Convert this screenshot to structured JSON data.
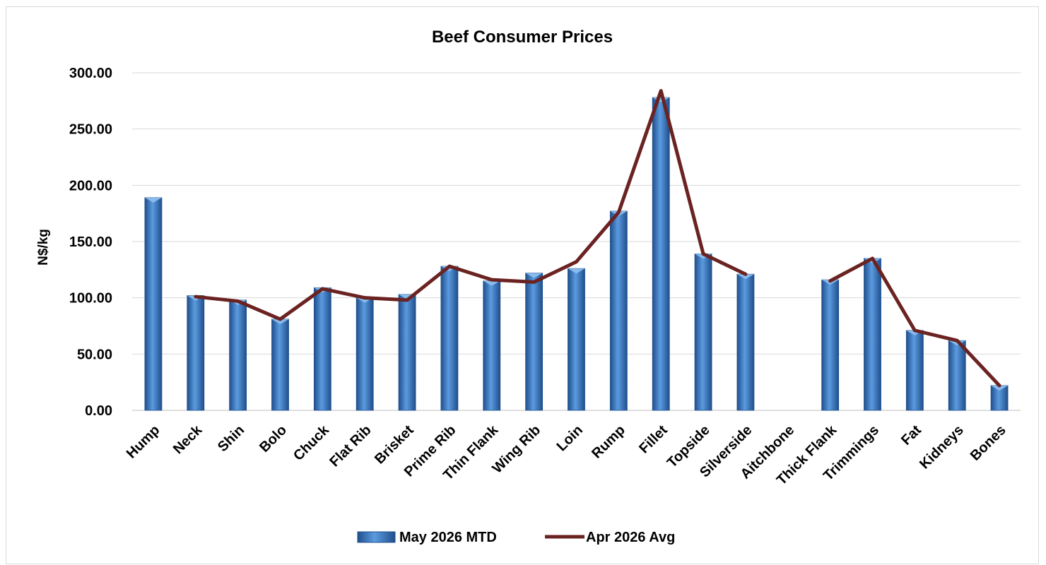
{
  "chart_data": {
    "type": "bar",
    "title": "Beef Consumer Prices",
    "ylabel": "N$/kg",
    "xlabel": "",
    "ylim": [
      0,
      300
    ],
    "yticks": [
      0,
      50,
      100,
      150,
      200,
      250,
      300
    ],
    "ytick_labels": [
      "0.00",
      "50.00",
      "100.00",
      "150.00",
      "200.00",
      "250.00",
      "300.00"
    ],
    "grid": true,
    "legend_position": "bottom",
    "categories": [
      "Hump",
      "Neck",
      "Shin",
      "Bolo",
      "Chuck",
      "Flat Rib",
      "Brisket",
      "Prime Rib",
      "Thin Flank",
      "Wing Rib",
      "Loin",
      "Rump",
      "Fillet",
      "Topside",
      "Silverside",
      "Aitchbone",
      "Thick Flank",
      "Trimmings",
      "Fat",
      "Kidneys",
      "Bones"
    ],
    "series": [
      {
        "name": "May 2026 MTD",
        "type": "bar",
        "color": "#3f7fc7",
        "values": [
          189,
          102,
          98,
          81,
          109,
          100,
          103,
          128,
          115,
          122,
          126,
          177,
          278,
          139,
          121,
          null,
          116,
          135,
          71,
          62,
          22
        ]
      },
      {
        "name": "Apr 2026 Avg",
        "type": "line",
        "color": "#6b2322",
        "values": [
          null,
          101,
          97,
          81,
          108,
          100,
          98,
          128,
          116,
          114,
          132,
          176,
          284,
          139,
          121,
          null,
          115,
          135,
          71,
          62,
          22
        ]
      }
    ]
  }
}
